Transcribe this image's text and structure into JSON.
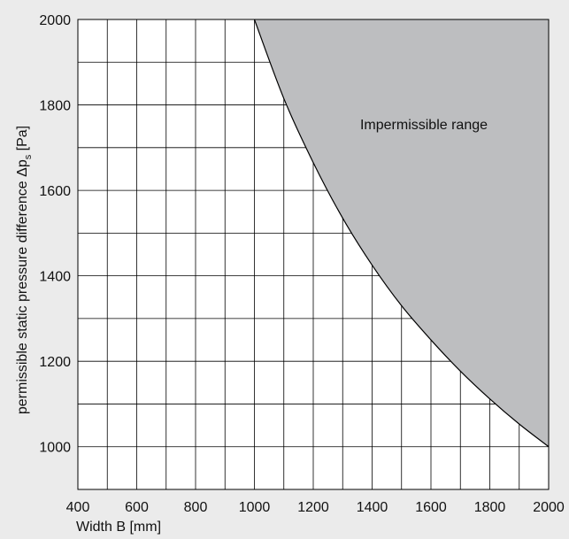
{
  "chart_data": {
    "type": "area",
    "xlabel": "Width B [mm]",
    "ylabel_main": "permissible static pressure difference  Δp",
    "ylabel_sub": "s",
    "ylabel_unit": " [Pa]",
    "xlim": [
      400,
      2000
    ],
    "ylim": [
      900,
      2000
    ],
    "x_ticks": [
      400,
      600,
      800,
      1000,
      1200,
      1400,
      1600,
      1800,
      2000
    ],
    "y_ticks": [
      1000,
      1200,
      1400,
      1600,
      1800,
      2000
    ],
    "grid": true,
    "grid_x_step": 100,
    "grid_y_step": 100,
    "annotation": "Impermissible range",
    "region_color": "#bdbec0",
    "boundary_curve": {
      "x": [
        1000,
        1100,
        1200,
        1300,
        1400,
        1500,
        1600,
        1700,
        1800,
        1900,
        2000
      ],
      "y": [
        2000,
        1815,
        1665,
        1535,
        1425,
        1330,
        1250,
        1177,
        1112,
        1053,
        1000
      ]
    }
  }
}
